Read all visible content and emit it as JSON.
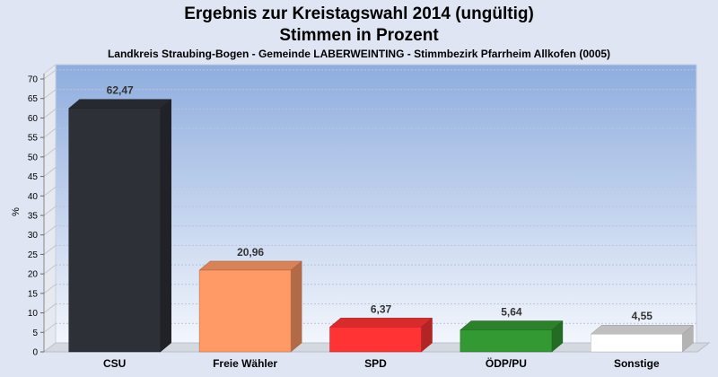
{
  "title_line1": "Ergebnis zur Kreistagswahl 2014 (ungültig)",
  "title_line2": "Stimmen in Prozent",
  "subtitle": "Landkreis Straubing-Bogen - Gemeinde LABERWEINTING - Stimmbezirk Pfarrheim Allkofen (0005)",
  "chart_data": {
    "type": "bar",
    "title": "Ergebnis zur Kreistagswahl 2014 (ungültig) Stimmen in Prozent",
    "subtitle": "Landkreis Straubing-Bogen - Gemeinde LABERWEINTING - Stimmbezirk Pfarrheim Allkofen (0005)",
    "xlabel": "",
    "ylabel": "%",
    "ylim": [
      0,
      70
    ],
    "yticks": [
      0,
      5,
      10,
      15,
      20,
      25,
      30,
      35,
      40,
      45,
      50,
      55,
      60,
      65,
      70
    ],
    "grid": true,
    "categories": [
      "CSU",
      "Freie Wähler",
      "SPD",
      "ÖDP/PU",
      "Sonstige"
    ],
    "values": [
      62.47,
      20.96,
      6.37,
      5.64,
      4.55
    ],
    "value_labels": [
      "62,47",
      "20,96",
      "6,37",
      "5,64",
      "4,55"
    ],
    "colors": [
      "#2e3038",
      "#ff9966",
      "#ff3333",
      "#339933",
      "#ffffff"
    ]
  }
}
